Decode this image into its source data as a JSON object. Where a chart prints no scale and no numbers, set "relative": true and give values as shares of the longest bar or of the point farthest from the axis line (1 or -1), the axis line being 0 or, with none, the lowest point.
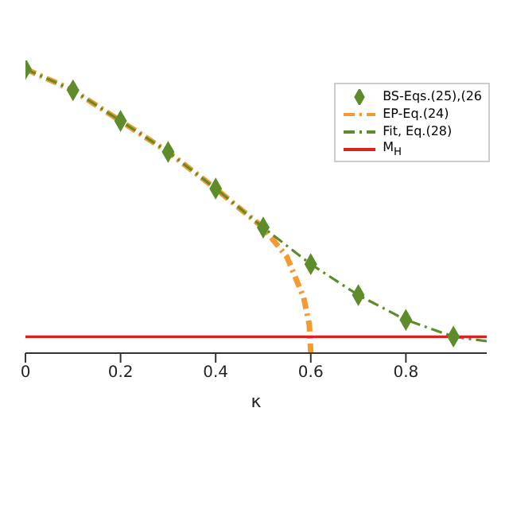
{
  "chart_data": {
    "type": "line",
    "xlabel": "κ",
    "relative": true,
    "xlim": [
      0,
      0.97
    ],
    "xticks": [
      0,
      0.2,
      0.4,
      0.6,
      0.8
    ],
    "legend": "top right",
    "grid": false,
    "series": [
      {
        "name": "BS-Eqs.(25),(26",
        "type": "scatter",
        "marker": "diamond",
        "color": "#5e8c2a",
        "x": [
          0,
          0.1,
          0.2,
          0.3,
          0.4,
          0.5,
          0.6,
          0.7,
          0.8,
          0.9
        ],
        "values": [
          1,
          0.925,
          0.817,
          0.708,
          0.579,
          0.442,
          0.313,
          0.204,
          0.117,
          0.058
        ]
      },
      {
        "name": "EP-Eq.(24)",
        "line_style": "dashed",
        "color": "#f59a30",
        "x": [
          0,
          0.1,
          0.2,
          0.3,
          0.4,
          0.45,
          0.5,
          0.55,
          0.585,
          0.597,
          0.6
        ],
        "values": [
          1,
          0.925,
          0.817,
          0.708,
          0.579,
          0.51,
          0.442,
          0.338,
          0.196,
          0.1,
          0
        ]
      },
      {
        "name": "Fit, Eq.(28)",
        "line_style": "dashed",
        "color": "#5e8c2a",
        "x": [
          0,
          0.1,
          0.2,
          0.3,
          0.4,
          0.5,
          0.6,
          0.7,
          0.8,
          0.9,
          0.97
        ],
        "values": [
          1,
          0.925,
          0.817,
          0.708,
          0.579,
          0.442,
          0.313,
          0.204,
          0.117,
          0.058,
          0.042
        ]
      },
      {
        "name": "M$_{H}$",
        "line_style": "solid",
        "color": "#e02020",
        "x": [
          0,
          0.97
        ],
        "values": [
          0.058,
          0.058
        ]
      }
    ]
  }
}
